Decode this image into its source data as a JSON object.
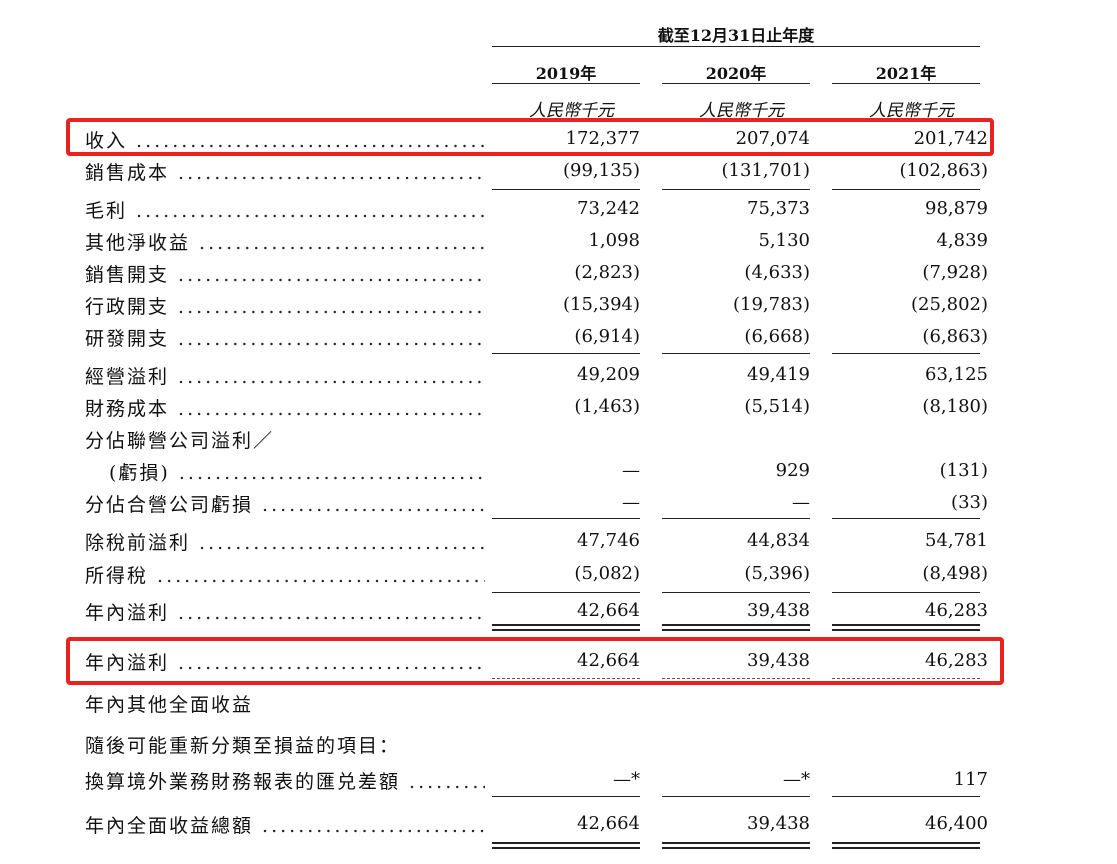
{
  "header": {
    "period": "截至12月31日止年度",
    "years": [
      "2019年",
      "2020年",
      "2021年"
    ],
    "unit": "人民幣千元"
  },
  "rows": [
    {
      "label": "收入",
      "values": [
        "172,377",
        "207,074",
        "201,742"
      ]
    },
    {
      "label": "銷售成本",
      "values": [
        "(99,135)",
        "(131,701)",
        "(102,863)"
      ]
    },
    {
      "label": "毛利",
      "values": [
        "73,242",
        "75,373",
        "98,879"
      ]
    },
    {
      "label": "其他淨收益",
      "values": [
        "1,098",
        "5,130",
        "4,839"
      ]
    },
    {
      "label": "銷售開支",
      "values": [
        "(2,823)",
        "(4,633)",
        "(7,928)"
      ]
    },
    {
      "label": "行政開支",
      "values": [
        "(15,394)",
        "(19,783)",
        "(25,802)"
      ]
    },
    {
      "label": "研發開支",
      "values": [
        "(6,914)",
        "(6,668)",
        "(6,863)"
      ]
    },
    {
      "label": "經營溢利",
      "values": [
        "49,209",
        "49,419",
        "63,125"
      ]
    },
    {
      "label": "財務成本",
      "values": [
        "(1,463)",
        "(5,514)",
        "(8,180)"
      ]
    },
    {
      "label": "分佔聯營公司溢利／",
      "values": [
        "",
        "",
        ""
      ]
    },
    {
      "label": "(虧損)",
      "values": [
        "—",
        "929",
        "(131)"
      ]
    },
    {
      "label": "分佔合營公司虧損",
      "values": [
        "—",
        "—",
        "(33)"
      ]
    },
    {
      "label": "除稅前溢利",
      "values": [
        "47,746",
        "44,834",
        "54,781"
      ]
    },
    {
      "label": "所得稅",
      "values": [
        "(5,082)",
        "(5,396)",
        "(8,498)"
      ]
    },
    {
      "label": "年內溢利",
      "values": [
        "42,664",
        "39,438",
        "46,283"
      ]
    },
    {
      "label": "年內溢利",
      "values": [
        "42,664",
        "39,438",
        "46,283"
      ]
    },
    {
      "label": "年內其他全面收益",
      "values": [
        "",
        "",
        ""
      ]
    },
    {
      "label": "隨後可能重新分類至損益的項目：",
      "values": [
        "",
        "",
        ""
      ]
    },
    {
      "label": "換算境外業務財務報表的匯兑差額",
      "values": [
        "—*",
        "—*",
        "117"
      ]
    },
    {
      "label": "年內全面收益總額",
      "values": [
        "42,664",
        "39,438",
        "46,400"
      ]
    }
  ]
}
